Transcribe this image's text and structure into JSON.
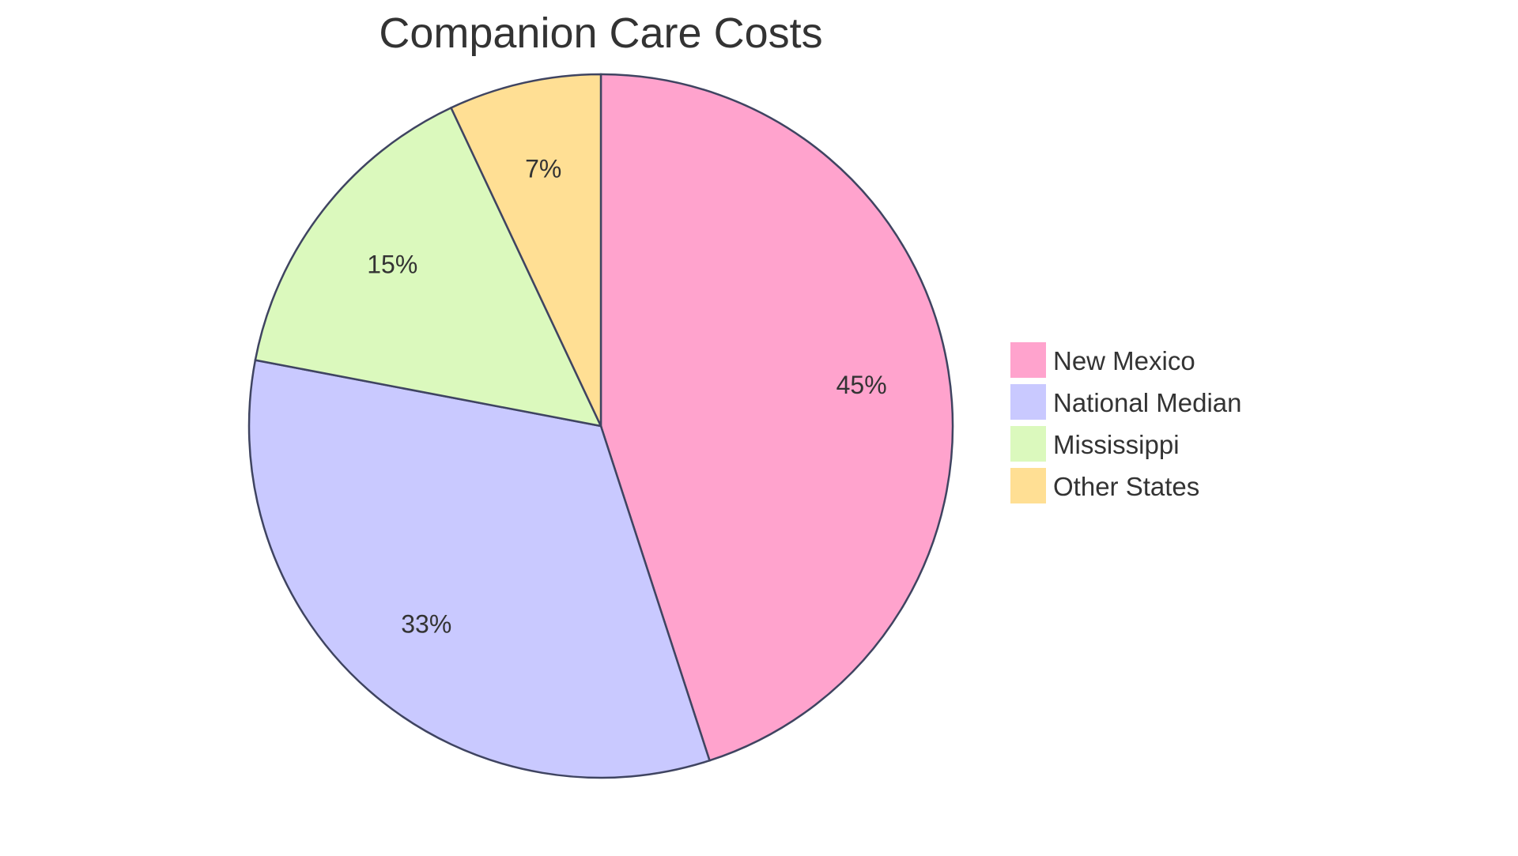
{
  "chart_data": {
    "type": "pie",
    "title": "Companion Care Costs",
    "start": "top",
    "direction": "clockwise",
    "legend_placement": "right",
    "slice_stroke": "#3f4461",
    "slices": [
      {
        "label": "New Mexico",
        "value": 45,
        "value_label": "45%",
        "color": "#ffa3cd"
      },
      {
        "label": "National Median",
        "value": 33,
        "value_label": "33%",
        "color": "#c9c9ff"
      },
      {
        "label": "Mississippi",
        "value": 15,
        "value_label": "15%",
        "color": "#dbf9bd"
      },
      {
        "label": "Other States",
        "value": 7,
        "value_label": "7%",
        "color": "#ffdf94"
      }
    ]
  }
}
